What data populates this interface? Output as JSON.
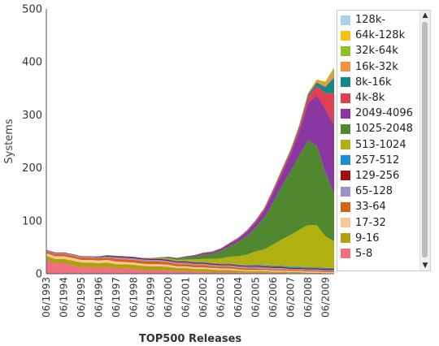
{
  "chart_data": {
    "type": "area",
    "stacked": true,
    "ylabel": "Systems",
    "xlabel": "TOP500 Releases",
    "ylim": [
      0,
      500
    ],
    "yticks": [
      0,
      100,
      200,
      300,
      400,
      500
    ],
    "x": [
      "06/1993",
      "11/1993",
      "06/1994",
      "11/1994",
      "06/1995",
      "11/1995",
      "06/1996",
      "11/1996",
      "06/1997",
      "11/1997",
      "06/1998",
      "11/1998",
      "06/1999",
      "11/1999",
      "06/2000",
      "11/2000",
      "06/2001",
      "11/2001",
      "06/2002",
      "11/2002",
      "06/2003",
      "11/2003",
      "06/2004",
      "11/2004",
      "06/2005",
      "11/2005",
      "06/2006",
      "11/2006",
      "06/2007",
      "11/2007",
      "06/2008",
      "11/2008",
      "06/2009",
      "11/2009"
    ],
    "xticklabels": [
      "06/1993",
      "06/1994",
      "06/1995",
      "06/1996",
      "06/1997",
      "06/1998",
      "06/1999",
      "06/2000",
      "06/2001",
      "06/2002",
      "06/2003",
      "06/2004",
      "06/2005",
      "06/2006",
      "06/2007",
      "06/2008",
      "06/2009"
    ],
    "grid": false,
    "legend_position": "right",
    "series": [
      {
        "name": "5-8",
        "color": "#f07080",
        "values": [
          26,
          20,
          20,
          16,
          12,
          12,
          11,
          12,
          10,
          10,
          9,
          7,
          7,
          7,
          6,
          5,
          5,
          4,
          4,
          3,
          3,
          3,
          2,
          2,
          2,
          2,
          2,
          2,
          1,
          1,
          1,
          1,
          0,
          0
        ]
      },
      {
        "name": "9-16",
        "color": "#b0a010",
        "values": [
          8,
          8,
          8,
          9,
          9,
          9,
          9,
          9,
          8,
          8,
          8,
          8,
          7,
          7,
          7,
          6,
          6,
          5,
          5,
          5,
          4,
          4,
          4,
          3,
          3,
          3,
          2,
          2,
          2,
          2,
          1,
          1,
          1,
          1
        ]
      },
      {
        "name": "17-32",
        "color": "#f8c898",
        "values": [
          5,
          5,
          5,
          5,
          5,
          5,
          5,
          5,
          5,
          4,
          4,
          4,
          4,
          4,
          4,
          3,
          3,
          3,
          3,
          3,
          3,
          3,
          2,
          2,
          2,
          2,
          2,
          2,
          2,
          2,
          2,
          2,
          2,
          2
        ]
      },
      {
        "name": "33-64",
        "color": "#d86010",
        "values": [
          3,
          4,
          4,
          4,
          4,
          4,
          4,
          4,
          5,
          5,
          5,
          5,
          5,
          5,
          4,
          4,
          4,
          4,
          4,
          3,
          3,
          3,
          3,
          3,
          3,
          2,
          2,
          2,
          2,
          2,
          2,
          2,
          2,
          2
        ]
      },
      {
        "name": "65-128",
        "color": "#a090c8",
        "values": [
          2,
          2,
          2,
          2,
          2,
          2,
          2,
          2,
          3,
          3,
          3,
          3,
          3,
          3,
          3,
          3,
          3,
          3,
          3,
          3,
          3,
          3,
          3,
          3,
          3,
          3,
          3,
          3,
          2,
          2,
          2,
          2,
          2,
          2
        ]
      },
      {
        "name": "129-256",
        "color": "#a01010",
        "values": [
          1,
          1,
          1,
          1,
          1,
          1,
          1,
          2,
          2,
          2,
          2,
          2,
          2,
          2,
          2,
          2,
          2,
          2,
          2,
          2,
          2,
          2,
          2,
          2,
          2,
          2,
          2,
          2,
          2,
          2,
          2,
          2,
          2,
          2
        ]
      },
      {
        "name": "257-512",
        "color": "#1890d8",
        "values": [
          0,
          0,
          0,
          0,
          0,
          0,
          1,
          1,
          1,
          1,
          1,
          1,
          1,
          1,
          1,
          1,
          1,
          1,
          1,
          1,
          1,
          1,
          1,
          1,
          2,
          2,
          2,
          2,
          2,
          2,
          2,
          2,
          2,
          2
        ]
      },
      {
        "name": "513-1024",
        "color": "#b0b010",
        "values": [
          0,
          0,
          0,
          0,
          0,
          0,
          0,
          0,
          0,
          0,
          0,
          0,
          1,
          1,
          2,
          2,
          3,
          5,
          6,
          8,
          10,
          13,
          16,
          20,
          25,
          30,
          40,
          50,
          60,
          70,
          80,
          80,
          60,
          50
        ]
      },
      {
        "name": "1025-2048",
        "color": "#508830",
        "values": [
          0,
          0,
          0,
          0,
          0,
          0,
          0,
          0,
          0,
          0,
          0,
          0,
          0,
          1,
          2,
          3,
          4,
          6,
          8,
          10,
          14,
          20,
          27,
          35,
          45,
          60,
          80,
          100,
          120,
          140,
          160,
          150,
          120,
          90
        ]
      },
      {
        "name": "2049-4096",
        "color": "#8838a0",
        "values": [
          0,
          0,
          0,
          0,
          0,
          0,
          0,
          0,
          0,
          0,
          0,
          0,
          0,
          0,
          1,
          1,
          2,
          2,
          3,
          3,
          4,
          5,
          6,
          8,
          10,
          14,
          18,
          24,
          32,
          45,
          70,
          95,
          120,
          130
        ]
      },
      {
        "name": "4k-8k",
        "color": "#e04050",
        "values": [
          0,
          0,
          0,
          0,
          0,
          0,
          0,
          0,
          0,
          0,
          0,
          0,
          0,
          0,
          0,
          0,
          0,
          0,
          1,
          1,
          1,
          1,
          2,
          2,
          3,
          3,
          4,
          5,
          6,
          8,
          12,
          18,
          30,
          60
        ]
      },
      {
        "name": "8k-16k",
        "color": "#108888",
        "values": [
          0,
          0,
          0,
          0,
          0,
          0,
          0,
          0,
          0,
          0,
          0,
          0,
          0,
          0,
          0,
          0,
          0,
          0,
          0,
          0,
          0,
          0,
          0,
          1,
          1,
          1,
          2,
          2,
          2,
          3,
          4,
          6,
          12,
          30
        ]
      },
      {
        "name": "16k-32k",
        "color": "#f89040",
        "values": [
          0,
          0,
          0,
          0,
          0,
          0,
          0,
          0,
          0,
          0,
          0,
          0,
          0,
          0,
          0,
          0,
          0,
          0,
          0,
          0,
          0,
          0,
          0,
          0,
          0,
          1,
          1,
          1,
          1,
          1,
          2,
          3,
          6,
          12
        ]
      },
      {
        "name": "32k-64k",
        "color": "#90c020",
        "values": [
          0,
          0,
          0,
          0,
          0,
          0,
          0,
          0,
          0,
          0,
          0,
          0,
          0,
          0,
          0,
          0,
          0,
          0,
          0,
          0,
          0,
          0,
          0,
          0,
          0,
          0,
          0,
          1,
          1,
          1,
          1,
          2,
          3,
          5
        ]
      },
      {
        "name": "64k-128k",
        "color": "#f8c010",
        "values": [
          0,
          0,
          0,
          0,
          0,
          0,
          0,
          0,
          0,
          0,
          0,
          0,
          0,
          0,
          0,
          0,
          0,
          0,
          0,
          0,
          0,
          0,
          0,
          0,
          0,
          0,
          0,
          0,
          0,
          0,
          0,
          1,
          1,
          2
        ]
      },
      {
        "name": "128k-",
        "color": "#a8d0f0",
        "values": [
          0,
          0,
          0,
          0,
          0,
          0,
          0,
          0,
          0,
          0,
          0,
          0,
          0,
          0,
          0,
          0,
          0,
          0,
          0,
          0,
          0,
          0,
          0,
          0,
          0,
          0,
          0,
          0,
          0,
          0,
          0,
          0,
          0,
          1
        ]
      }
    ]
  },
  "legend": {
    "items": [
      {
        "label": "128k-",
        "color": "#a8d0f0"
      },
      {
        "label": "64k-128k",
        "color": "#f8c010"
      },
      {
        "label": "32k-64k",
        "color": "#90c020"
      },
      {
        "label": "16k-32k",
        "color": "#f89040"
      },
      {
        "label": "8k-16k",
        "color": "#108888"
      },
      {
        "label": "4k-8k",
        "color": "#e04050"
      },
      {
        "label": "2049-4096",
        "color": "#8838a0"
      },
      {
        "label": "1025-2048",
        "color": "#508830"
      },
      {
        "label": "513-1024",
        "color": "#b0b010"
      },
      {
        "label": "257-512",
        "color": "#1890d8"
      },
      {
        "label": "129-256",
        "color": "#a01010"
      },
      {
        "label": "65-128",
        "color": "#a090c8"
      },
      {
        "label": "33-64",
        "color": "#d86010"
      },
      {
        "label": "17-32",
        "color": "#f8c898"
      },
      {
        "label": "9-16",
        "color": "#b0a010"
      },
      {
        "label": "5-8",
        "color": "#f07080"
      }
    ],
    "scroll_up": "▲",
    "scroll_down": "▼"
  }
}
